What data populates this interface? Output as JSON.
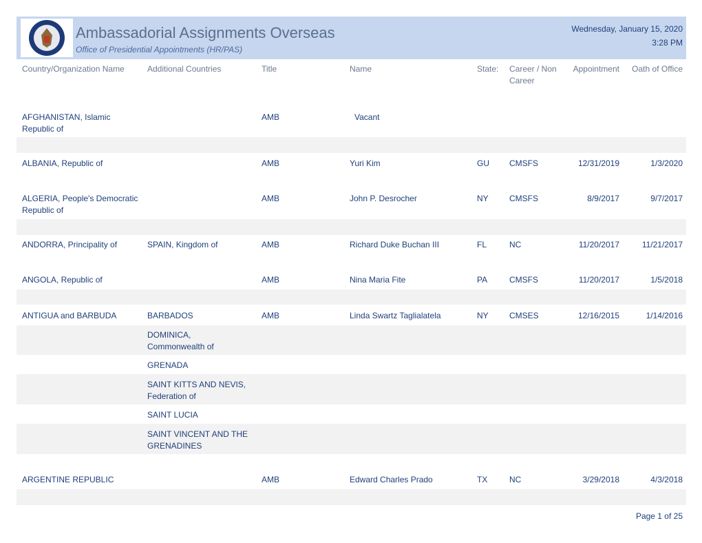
{
  "header": {
    "title": "Ambassadorial Assignments Overseas",
    "subtitle": "Office of Presidential Appointments (HR/PAS)",
    "date": "Wednesday, January 15, 2020",
    "time": "3:28 PM"
  },
  "columns": [
    "Country/Organization Name",
    "Additional Countries",
    "Title",
    "Name",
    "State:",
    "Career / Non Career",
    "Appointment",
    "Oath of  Office"
  ],
  "rows": [
    {
      "country": "AFGHANISTAN, Islamic Republic of",
      "title": "AMB",
      "name": "Vacant"
    },
    {
      "country": "ALBANIA, Republic of",
      "title": "AMB",
      "name": "Yuri  Kim",
      "state": "GU",
      "career": "CMSFS",
      "appointment": "12/31/2019",
      "oath": "1/3/2020"
    },
    {
      "country": "ALGERIA, People's Democratic Republic of",
      "title": "AMB",
      "name": "John P. Desrocher",
      "state": "NY",
      "career": "CMSFS",
      "appointment": "8/9/2017",
      "oath": "9/7/2017"
    },
    {
      "country": "ANDORRA, Principality of",
      "additional": "SPAIN, Kingdom of",
      "title": "AMB",
      "name": "Richard Duke Buchan III",
      "state": "FL",
      "career": "NC",
      "appointment": "11/20/2017",
      "oath": "11/21/2017"
    },
    {
      "country": "ANGOLA, Republic of",
      "title": "AMB",
      "name": "Nina Maria Fite",
      "state": "PA",
      "career": "CMSFS",
      "appointment": "11/20/2017",
      "oath": "1/5/2018"
    },
    {
      "country": "ANTIGUA and BARBUDA",
      "additional": "BARBADOS",
      "title": "AMB",
      "name": "Linda Swartz Taglialatela",
      "state": "NY",
      "career": "CMSES",
      "appointment": "12/16/2015",
      "oath": "1/14/2016"
    },
    {
      "additional": "DOMINICA, Commonwealth of"
    },
    {
      "additional": "GRENADA"
    },
    {
      "additional": "SAINT KITTS AND NEVIS, Federation of"
    },
    {
      "additional": "SAINT LUCIA"
    },
    {
      "additional": "SAINT VINCENT AND THE GRENADINES"
    },
    {
      "country": "ARGENTINE REPUBLIC",
      "title": "AMB",
      "name": "Edward Charles Prado",
      "state": "TX",
      "career": "NC",
      "appointment": "3/29/2018",
      "oath": "4/3/2018"
    }
  ],
  "footer": {
    "page": "Page 1 of 25"
  }
}
